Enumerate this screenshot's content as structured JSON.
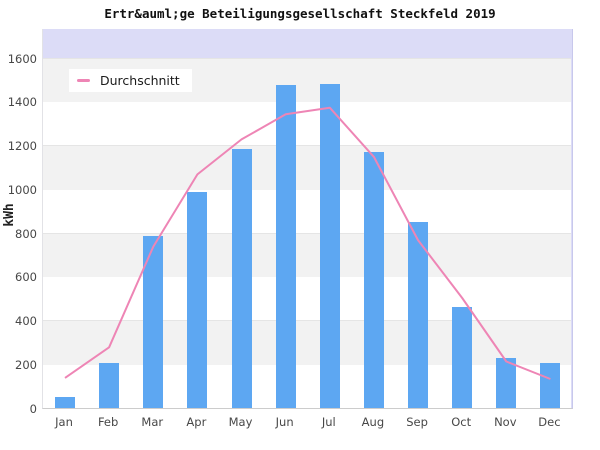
{
  "title": "Ertr&auml;ge Beteiligungsgesellschaft Steckfeld 2019",
  "y_axis": {
    "label": "kWh",
    "tick_labels": [
      "0",
      "200",
      "400",
      "600",
      "800",
      "1000",
      "1200",
      "1400",
      "1600"
    ]
  },
  "legend": {
    "label": "Durchschnitt"
  },
  "chart_data": {
    "type": "bar",
    "title": "Ertr&auml;ge Beteiligungsgesellschaft Steckfeld 2019",
    "xlabel": "",
    "ylabel": "kWh",
    "ylim": [
      0,
      1730
    ],
    "grid": "horizontal-bands-every-200",
    "legend_position": "top-left-inside",
    "categories": [
      "Jan",
      "Feb",
      "Mar",
      "Apr",
      "May",
      "Jun",
      "Jul",
      "Aug",
      "Sep",
      "Oct",
      "Nov",
      "Dec"
    ],
    "values": [
      50,
      205,
      785,
      985,
      1180,
      1475,
      1480,
      1170,
      850,
      460,
      225,
      205
    ],
    "line_series": {
      "name": "Durchschnitt",
      "type": "line",
      "values": [
        140,
        280,
        740,
        1070,
        1230,
        1345,
        1375,
        1150,
        770,
        505,
        215,
        135
      ]
    },
    "colors": {
      "bar": "#5da7f2",
      "line": "#ee85b5",
      "plot_background": "#dcdcf7",
      "band_light": "#ffffff",
      "band_dark": "#f2f2f2",
      "axis_line": "#cccccc",
      "text": "#474747"
    }
  }
}
